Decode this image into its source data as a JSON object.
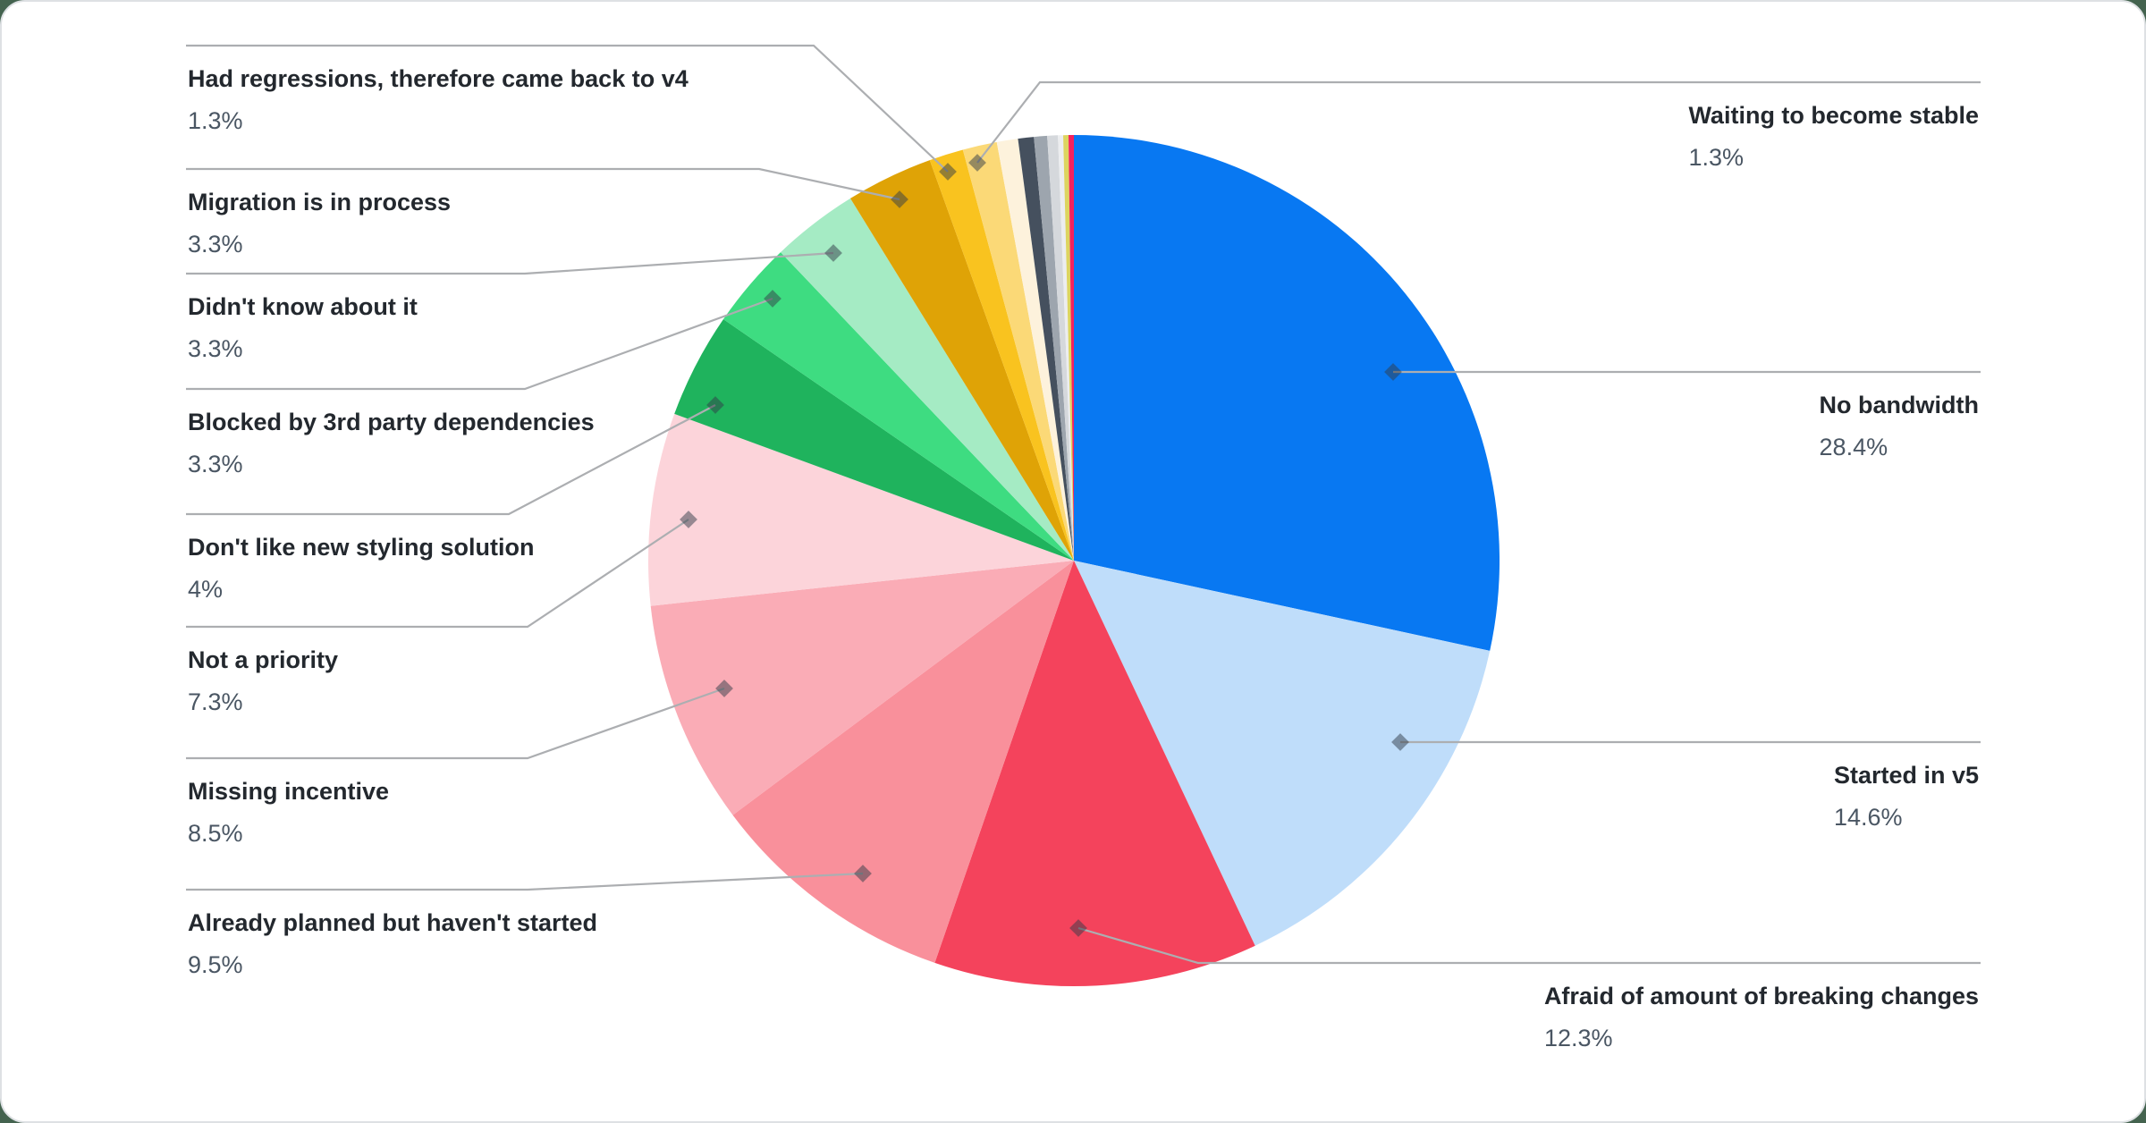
{
  "chart_data": {
    "type": "pie",
    "title": "",
    "legend_position": "callout-labels-both-sides",
    "colors": {
      "page_background": "#44634F",
      "card_background": "#FFFFFF",
      "card_border": "#DEE1E4",
      "label_text": "#23282E",
      "pct_text": "#4A5663",
      "leader_line": "#ACAEB1",
      "marker": "rgba(50,60,72,0.5)"
    },
    "slices": [
      {
        "name": "No bandwidth",
        "value_pct": 28.4,
        "pct_text": "28.4%",
        "color": "#0878F2",
        "labeled": true,
        "side": "right"
      },
      {
        "name": "Started in v5",
        "value_pct": 14.6,
        "pct_text": "14.6%",
        "color": "#BFDDFA",
        "labeled": true,
        "side": "right"
      },
      {
        "name": "Afraid of amount of breaking changes",
        "value_pct": 12.3,
        "pct_text": "12.3%",
        "color": "#F4435C",
        "labeled": true,
        "side": "right"
      },
      {
        "name": "Already planned but haven't started",
        "value_pct": 9.5,
        "pct_text": "9.5%",
        "color": "#F9909B",
        "labeled": true,
        "side": "left"
      },
      {
        "name": "Missing incentive",
        "value_pct": 8.5,
        "pct_text": "8.5%",
        "color": "#FAACB6",
        "labeled": true,
        "side": "left"
      },
      {
        "name": "Not a priority",
        "value_pct": 7.3,
        "pct_text": "7.3%",
        "color": "#FCD4DA",
        "labeled": true,
        "side": "left"
      },
      {
        "name": "Don't like new styling solution",
        "value_pct": 4,
        "pct_text": "4%",
        "color": "#1FB35D",
        "labeled": true,
        "side": "left"
      },
      {
        "name": "Blocked by 3rd party dependencies",
        "value_pct": 3.3,
        "pct_text": "3.3%",
        "color": "#3EDC81",
        "labeled": true,
        "side": "left"
      },
      {
        "name": "Didn't know about it",
        "value_pct": 3.3,
        "pct_text": "3.3%",
        "color": "#A5EBC4",
        "labeled": true,
        "side": "left"
      },
      {
        "name": "Migration is in process",
        "value_pct": 3.3,
        "pct_text": "3.3%",
        "color": "#DFA306",
        "labeled": true,
        "side": "left"
      },
      {
        "name": "Had regressions, therefore came back to v4",
        "value_pct": 1.3,
        "pct_text": "1.3%",
        "color": "#F9C31F",
        "labeled": true,
        "side": "left"
      },
      {
        "name": "Waiting to become stable",
        "value_pct": 1.3,
        "pct_text": "1.3%",
        "color": "#FBD977",
        "labeled": true,
        "side": "right"
      },
      {
        "name": null,
        "value_pct": 0.8,
        "pct_text": null,
        "color": "#FDF2DC",
        "labeled": false,
        "note": "unlabeled small slice, value estimated"
      },
      {
        "name": null,
        "value_pct": 0.6,
        "pct_text": null,
        "color": "#45505E",
        "labeled": false,
        "note": "unlabeled small slice, value estimated"
      },
      {
        "name": null,
        "value_pct": 0.5,
        "pct_text": null,
        "color": "#9DA5AE",
        "labeled": false,
        "note": "unlabeled small slice, value estimated"
      },
      {
        "name": null,
        "value_pct": 0.4,
        "pct_text": null,
        "color": "#D5D8DC",
        "labeled": false,
        "note": "unlabeled small slice, value estimated"
      },
      {
        "name": null,
        "value_pct": 0.2,
        "pct_text": null,
        "color": "#ECEDEF",
        "labeled": false,
        "note": "unlabeled small slice, value estimated"
      },
      {
        "name": null,
        "value_pct": 0.2,
        "pct_text": null,
        "color": "#DDD45F",
        "labeled": false,
        "note": "unlabeled small slice, value estimated"
      },
      {
        "name": null,
        "value_pct": 0.2,
        "pct_text": null,
        "color": "#F5215D",
        "labeled": false,
        "note": "unlabeled small slice, value estimated"
      }
    ],
    "callouts": [
      {
        "name": "Had regressions, therefore came back to v4",
        "pct": "1.3%"
      },
      {
        "name": "Migration is in process",
        "pct": "3.3%"
      },
      {
        "name": "Didn't know about it",
        "pct": "3.3%"
      },
      {
        "name": "Blocked by 3rd party dependencies",
        "pct": "3.3%"
      },
      {
        "name": "Don't like new styling solution",
        "pct": "4%"
      },
      {
        "name": "Not a priority",
        "pct": "7.3%"
      },
      {
        "name": "Missing incentive",
        "pct": "8.5%"
      },
      {
        "name": "Already planned but haven't started",
        "pct": "9.5%"
      },
      {
        "name": "Waiting to become stable",
        "pct": "1.3%"
      },
      {
        "name": "No bandwidth",
        "pct": "28.4%"
      },
      {
        "name": "Started in v5",
        "pct": "14.6%"
      },
      {
        "name": "Afraid of amount of breaking changes",
        "pct": "12.3%"
      }
    ]
  }
}
